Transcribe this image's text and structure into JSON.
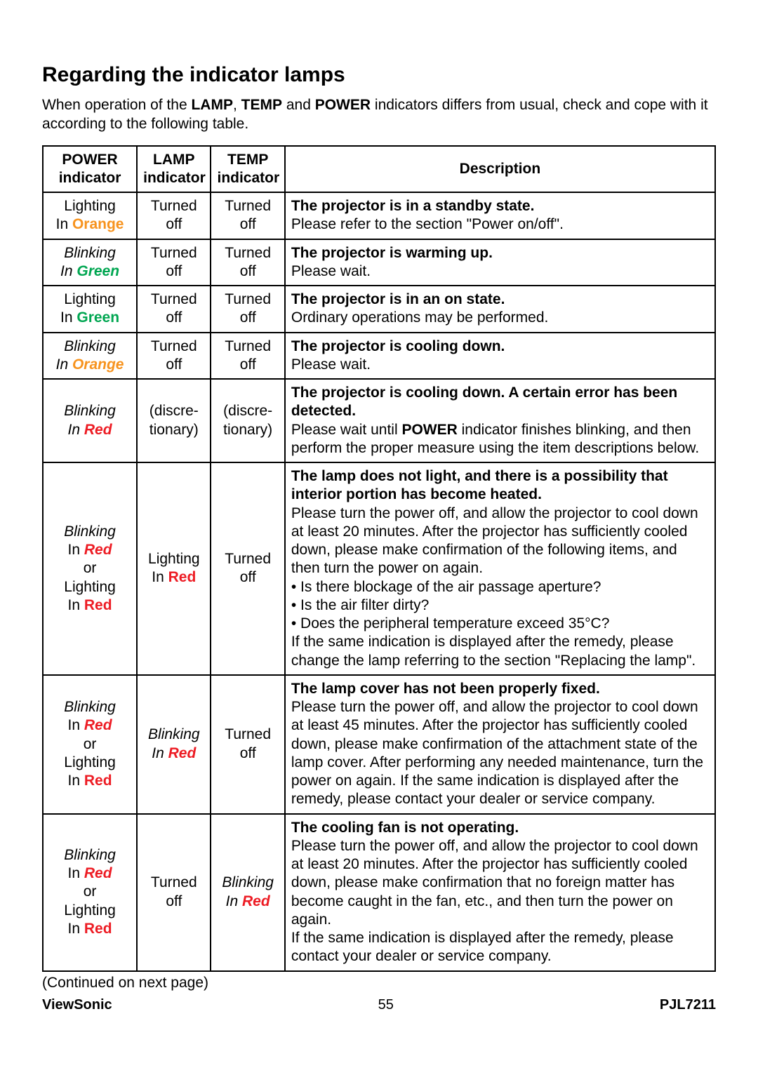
{
  "title": "Regarding the indicator lamps",
  "intro_pre": "When operation of the ",
  "intro_lamp": "LAMP",
  "intro_sep1": ", ",
  "intro_temp": "TEMP",
  "intro_sep2": " and ",
  "intro_power": "POWER",
  "intro_post": " indicators differs from usual, check and cope with it according to the following table.",
  "headers": {
    "power": "POWER indicator",
    "lamp": "LAMP indicator",
    "temp": "TEMP indicator",
    "desc": "Description"
  },
  "rows": {
    "r1": {
      "p1": "Lighting",
      "p2": "In ",
      "p2c": "Orange",
      "l": "Turned off",
      "t": "Turned off",
      "d_bold": "The projector is in a standby state.",
      "d_rest": "Please refer to the section \"Power on/off\"."
    },
    "r2": {
      "p1": "Blinking",
      "p2": "In ",
      "p2c": "Green",
      "l": "Turned off",
      "t": "Turned off",
      "d_bold": "The projector is warming up.",
      "d_rest": "Please wait."
    },
    "r3": {
      "p1": "Lighting",
      "p2": "In ",
      "p2c": "Green",
      "l": "Turned off",
      "t": "Turned off",
      "d_bold": "The projector is in an on state.",
      "d_rest": "Ordinary operations may be performed."
    },
    "r4": {
      "p1": "Blinking",
      "p2": "In ",
      "p2c": "Orange",
      "l": "Turned off",
      "t": "Turned off",
      "d_bold": "The projector is cooling down.",
      "d_rest": "Please wait."
    },
    "r5": {
      "p1": "Blinking",
      "p2": "In ",
      "p2c": "Red",
      "l": "(discre-tionary)",
      "t": "(discre-tionary)",
      "d_bold": "The projector is cooling down. A certain error has been detected.",
      "d_pre": "Please wait until ",
      "d_pow": "POWER",
      "d_post": " indicator finishes blinking, and then perform the proper measure using the item descriptions below."
    },
    "r6": {
      "p1": "Blinking",
      "p2": "In ",
      "p2c": "Red",
      "p3": "or",
      "p4": "Lighting",
      "p5": "In ",
      "p5c": "Red",
      "l1": "Lighting",
      "l2": "In ",
      "l2c": "Red",
      "t": "Turned off",
      "d_bold": "The lamp does not light, and there is a possibility that interior portion has become heated.",
      "d_rest": "Please turn the power off, and allow the projector to cool down at least 20 minutes. After the projector has sufficiently cooled down, please make confirmation of the following items, and then turn the power on again.\n• Is there blockage of the air passage aperture?\n• Is the air filter dirty?\n• Does the peripheral temperature exceed 35°C?\nIf the same indication is displayed after the remedy, please change the lamp referring to the section \"Replacing the lamp\"."
    },
    "r7": {
      "p1": "Blinking",
      "p2": "In ",
      "p2c": "Red",
      "p3": "or",
      "p4": "Lighting",
      "p5": "In ",
      "p5c": "Red",
      "l1": "Blinking",
      "l2": "In ",
      "l2c": "Red",
      "t": "Turned off",
      "d_bold": "The lamp cover has not been properly fixed.",
      "d_rest": "Please turn the power off, and allow the projector to cool down at least 45 minutes. After the projector has sufficiently cooled down, please make confirmation of the attachment state of the lamp cover. After performing any needed maintenance, turn the power on again. If the same indication is displayed after the remedy, please contact your dealer or service company."
    },
    "r8": {
      "p1": "Blinking",
      "p2": "In ",
      "p2c": "Red",
      "p3": "or",
      "p4": "Lighting",
      "p5": "In ",
      "p5c": "Red",
      "l": "Turned off",
      "t1": "Blinking",
      "t2": "In ",
      "t2c": "Red",
      "d_bold": "The cooling fan is not operating.",
      "d_rest": "Please turn the power off, and allow the projector to cool down at least 20 minutes. After the projector has sufficiently cooled down, please make confirmation that no foreign matter has become caught in the fan, etc., and then turn the power on again.\nIf the same indication is displayed after the remedy, please contact your dealer or service company."
    }
  },
  "continued": "(Continued on next page)",
  "footer_left": "ViewSonic",
  "footer_center": "55",
  "footer_right": "PJL7211",
  "colors": {
    "orange": "#f7931e",
    "green": "#00a651",
    "red": "#ed1c24",
    "text": "#000000",
    "border": "#000000",
    "background": "#ffffff"
  },
  "font_sizes": {
    "title": 30,
    "body": 21,
    "footer": 20
  }
}
